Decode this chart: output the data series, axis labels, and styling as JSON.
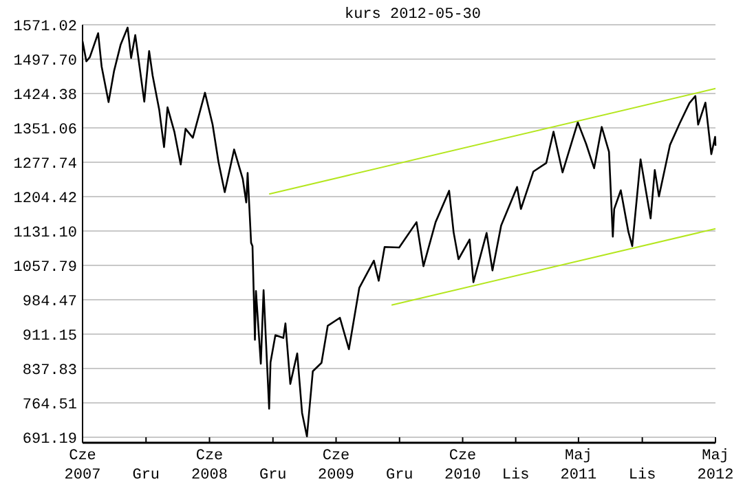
{
  "chart_data": {
    "type": "line",
    "title": "kurs  2012-05-30",
    "xlim": [
      "2007-06-01",
      "2012-05-30"
    ],
    "xticks": [
      {
        "value": "2007-06-01",
        "label": "Cze\n2007"
      },
      {
        "value": "2007-12-01",
        "label": "Gru"
      },
      {
        "value": "2008-06-01",
        "label": "Cze\n2008"
      },
      {
        "value": "2008-12-01",
        "label": "Gru"
      },
      {
        "value": "2009-06-01",
        "label": "Cze\n2009"
      },
      {
        "value": "2009-12-01",
        "label": "Gru"
      },
      {
        "value": "2010-06-01",
        "label": "Cze\n2010"
      },
      {
        "value": "2010-11-01",
        "label": "Lis"
      },
      {
        "value": "2011-05-01",
        "label": "Maj\n2011"
      },
      {
        "value": "2011-11-01",
        "label": "Lis"
      },
      {
        "value": "2012-05-30",
        "label": "Maj\n2012"
      }
    ],
    "ylim": [
      691.19,
      1571.02
    ],
    "yticks": [
      691.19,
      764.51,
      837.83,
      911.15,
      984.47,
      1057.79,
      {
        "value": 1131.1,
        "label": "1131.10"
      },
      1204.42,
      1277.74,
      1351.06,
      1424.38,
      {
        "value": 1497.7,
        "label": "1497.70"
      },
      1571.02
    ],
    "grid": "y",
    "series": [
      {
        "color": "#000000",
        "x": [
          "2007-06-01",
          "2007-06-12",
          "2007-06-22",
          "2007-07-16",
          "2007-07-26",
          "2007-08-15",
          "2007-08-31",
          "2007-09-19",
          "2007-10-09",
          "2007-10-19",
          "2007-10-31",
          "2007-11-26",
          "2007-12-10",
          "2007-12-20",
          "2008-01-08",
          "2008-01-22",
          "2008-02-01",
          "2008-02-21",
          "2008-03-10",
          "2008-03-24",
          "2008-04-14",
          "2008-05-19",
          "2008-06-10",
          "2008-06-27",
          "2008-07-15",
          "2008-08-11",
          "2008-09-05",
          "2008-09-15",
          "2008-09-19",
          "2008-09-29",
          "2008-10-03",
          "2008-10-10",
          "2008-10-13",
          "2008-10-27",
          "2008-11-04",
          "2008-11-20",
          "2008-11-24",
          "2008-12-08",
          "2008-12-31",
          "2009-01-06",
          "2009-01-20",
          "2009-02-09",
          "2009-02-23",
          "2009-03-09",
          "2009-03-26",
          "2009-04-20",
          "2009-05-08",
          "2009-06-12",
          "2009-07-08",
          "2009-08-07",
          "2009-09-18",
          "2009-10-02",
          "2009-10-19",
          "2009-11-30",
          "2010-01-19",
          "2010-02-08",
          "2010-03-15",
          "2010-04-23",
          "2010-05-06",
          "2010-05-20",
          "2010-06-21",
          "2010-07-02",
          "2010-08-09",
          "2010-08-26",
          "2010-09-20",
          "2010-11-05",
          "2010-11-16",
          "2010-12-22",
          "2011-01-28",
          "2011-02-18",
          "2011-03-16",
          "2011-04-29",
          "2011-05-23",
          "2011-06-15",
          "2011-07-07",
          "2011-07-28",
          "2011-08-08",
          "2011-08-12",
          "2011-08-31",
          "2011-09-22",
          "2011-10-03",
          "2011-10-27",
          "2011-11-25",
          "2011-12-07",
          "2011-12-19",
          "2012-01-20",
          "2012-02-17",
          "2012-03-16",
          "2012-04-02",
          "2012-04-10",
          "2012-05-01",
          "2012-05-18",
          "2012-05-29",
          "2012-05-30"
        ],
        "values": [
          1536,
          1493,
          1502,
          1553,
          1482,
          1406,
          1473,
          1529,
          1565,
          1500,
          1549,
          1407,
          1515,
          1463,
          1390,
          1310,
          1395,
          1342,
          1273,
          1349,
          1330,
          1426,
          1358,
          1278,
          1214,
          1305,
          1242,
          1192,
          1255,
          1106,
          1099,
          899,
          1003,
          848,
          1005,
          752,
          851,
          909,
          903,
          934,
          805,
          870,
          743,
          693,
          832,
          850,
          929,
          946,
          879,
          1010,
          1068,
          1025,
          1097,
          1096,
          1150,
          1056,
          1150,
          1217,
          1128,
          1071,
          1113,
          1022,
          1127,
          1047,
          1143,
          1225,
          1178,
          1258,
          1276,
          1343,
          1256,
          1363,
          1317,
          1265,
          1353,
          1300,
          1119,
          1178,
          1218,
          1129,
          1099,
          1284,
          1158,
          1261,
          1205,
          1315,
          1361,
          1404,
          1419,
          1358,
          1405,
          1295,
          1332,
          1313
        ]
      },
      {
        "color": "#b4e61e",
        "x": [
          "2008-11-20",
          "2012-05-30"
        ],
        "values": [
          1210,
          1435
        ]
      },
      {
        "color": "#b4e61e",
        "x": [
          "2009-11-08",
          "2012-05-30"
        ],
        "values": [
          973,
          1136
        ]
      }
    ]
  }
}
